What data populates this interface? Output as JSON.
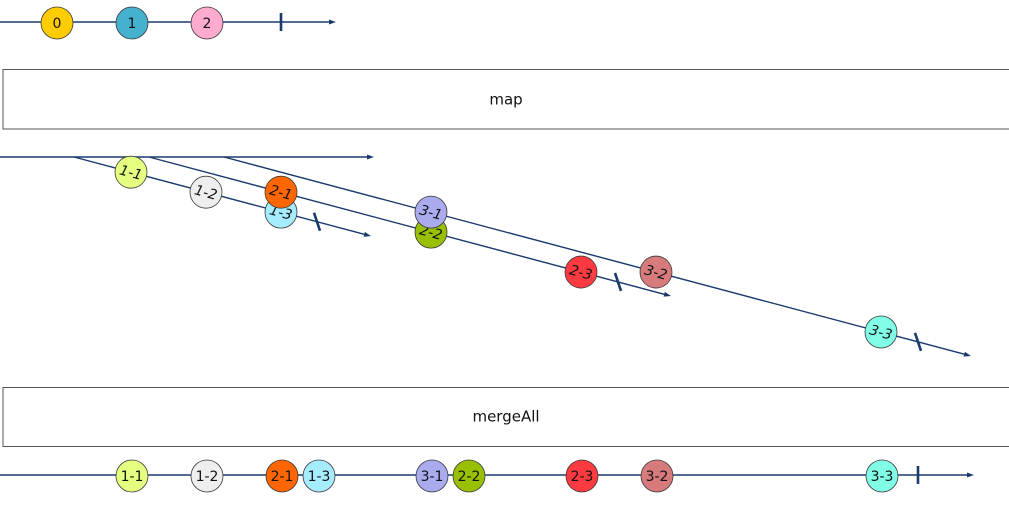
{
  "source": {
    "marbles": [
      {
        "label": "0",
        "color": "#ffcc00"
      },
      {
        "label": "1",
        "color": "#46b0cf"
      },
      {
        "label": "2",
        "color": "#ffaacf"
      }
    ]
  },
  "operators": {
    "map": "map",
    "merge": "mergeAll"
  },
  "inner": [
    {
      "marbles": [
        {
          "label": "1-1",
          "color": "#e5ff80"
        },
        {
          "label": "1-2",
          "color": "#eeeeee"
        },
        {
          "label": "1-3",
          "color": "#a6ecff"
        }
      ]
    },
    {
      "marbles": [
        {
          "label": "2-1",
          "color": "#ff6600"
        },
        {
          "label": "2-2",
          "color": "#99c000"
        },
        {
          "label": "2-3",
          "color": "#ff3a40"
        }
      ]
    },
    {
      "marbles": [
        {
          "label": "3-1",
          "color": "#aaaaee"
        },
        {
          "label": "3-2",
          "color": "#d77a7c"
        },
        {
          "label": "3-3",
          "color": "#80ffe6"
        }
      ]
    }
  ],
  "output": {
    "marbles": [
      {
        "label": "1-1",
        "color": "#e5ff80"
      },
      {
        "label": "1-2",
        "color": "#eeeeee"
      },
      {
        "label": "2-1",
        "color": "#ff6600"
      },
      {
        "label": "1-3",
        "color": "#a6ecff"
      },
      {
        "label": "3-1",
        "color": "#aaaaee"
      },
      {
        "label": "2-2",
        "color": "#99c000"
      },
      {
        "label": "2-3",
        "color": "#ff3a40"
      },
      {
        "label": "3-2",
        "color": "#d77a7c"
      },
      {
        "label": "3-3",
        "color": "#80ffe6"
      }
    ]
  }
}
